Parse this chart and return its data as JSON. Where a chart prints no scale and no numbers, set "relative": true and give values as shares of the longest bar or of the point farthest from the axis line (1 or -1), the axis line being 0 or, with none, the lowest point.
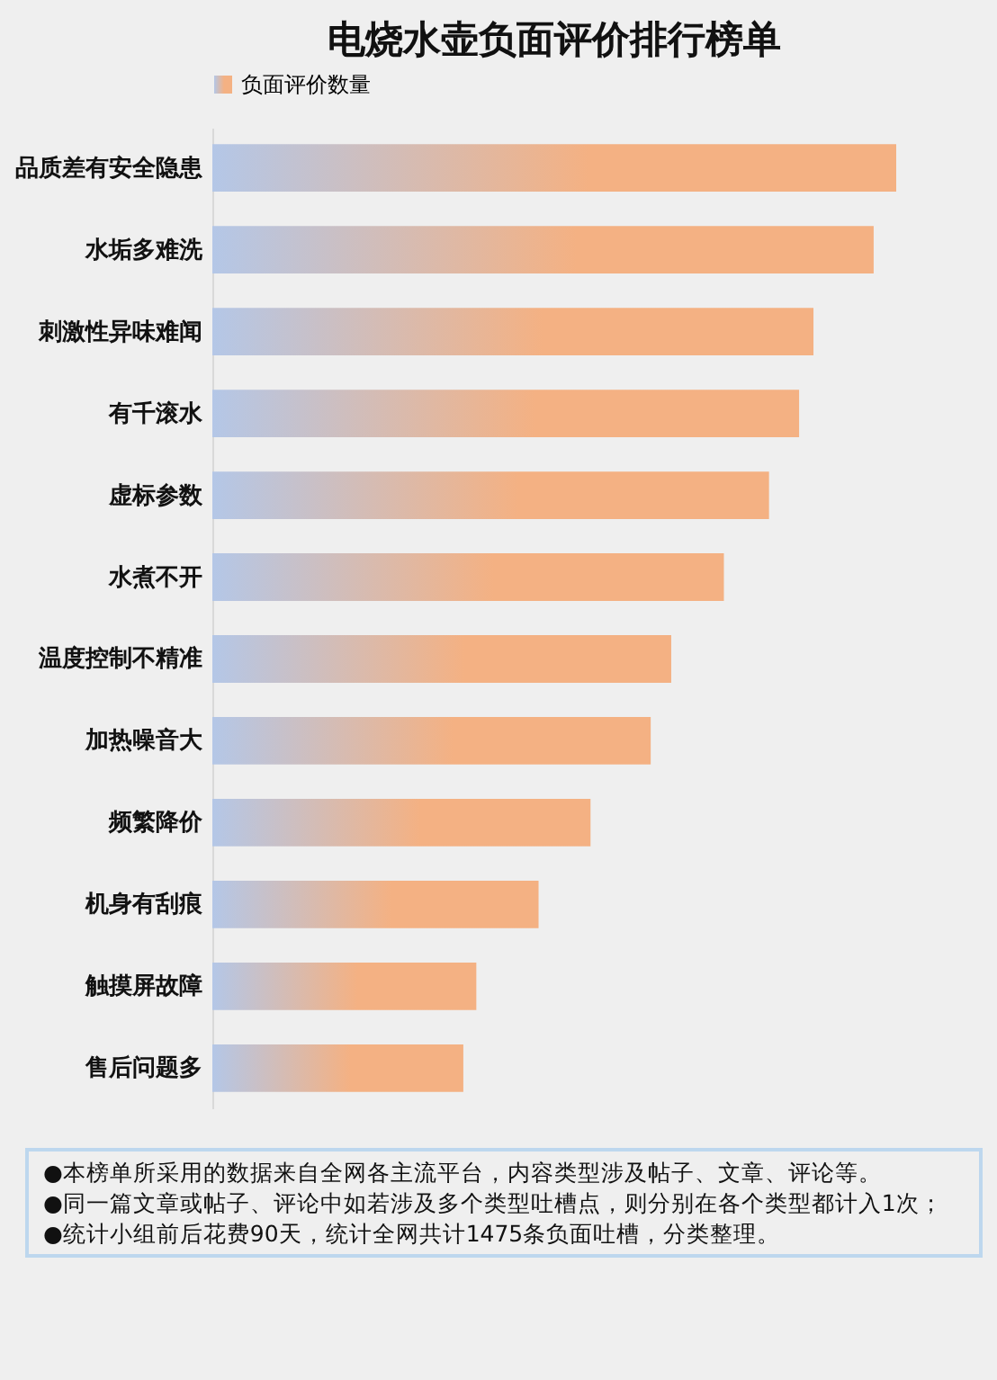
{
  "chart_data": {
    "type": "bar",
    "orientation": "horizontal",
    "relative": true,
    "title": "电烧水壶负面评价排行榜单",
    "categories": [
      "品质差有安全隐患",
      "水垢多难洗",
      "刺激性异味难闻",
      "有千滚水",
      "虚标参数",
      "水煮不开",
      "温度控制不精准",
      "加热噪音大",
      "频繁降价",
      "机身有刮痕",
      "触摸屏故障",
      "售后问题多"
    ],
    "series": [
      {
        "name": "负面评价数量",
        "color": "#f4b183",
        "values": [
          1,
          0.967,
          0.879,
          0.858,
          0.814,
          0.748,
          0.671,
          0.641,
          0.553,
          0.477,
          0.386,
          0.367
        ]
      }
    ],
    "legend": "top",
    "annotations": [
      "●本榜单所采用的数据来自全网各主流平台，内容类型涉及帖子、文章、评论等。",
      "●同一篇文章或帖子、评论中如若涉及多个类型吐槽点，则分别在各个类型都计入1次；",
      "●统计小组前后花费90天，统计全网共计1475条负面吐槽，分类整理。"
    ]
  }
}
